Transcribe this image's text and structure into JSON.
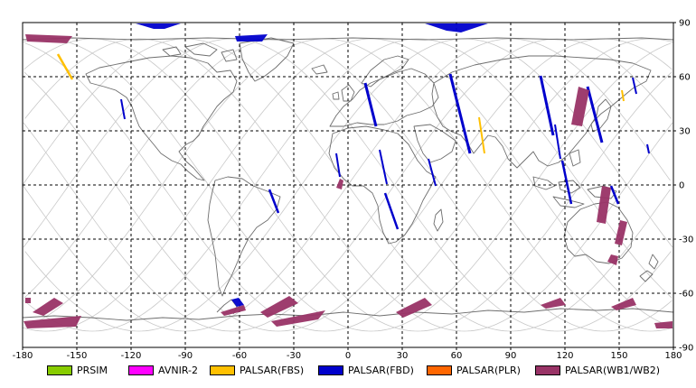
{
  "map": {
    "lon_ticks": [
      "-180",
      "-150",
      "-120",
      "-90",
      "-60",
      "-30",
      "0",
      "30",
      "60",
      "90",
      "120",
      "150",
      "180"
    ],
    "lat_ticks": [
      "90",
      "60",
      "30",
      "0",
      "-30",
      "-60",
      "-90"
    ],
    "lon_range": [
      -180,
      180
    ],
    "lat_range": [
      -90,
      90
    ],
    "grid": "dashed",
    "colors": {
      "coastline": "#6e6e6e",
      "orbit": "#c8c8c8",
      "grid": "#000000"
    }
  },
  "legend": {
    "placement": "bottom",
    "items": [
      {
        "label": "PRSIM",
        "color": "#88cc00"
      },
      {
        "label": "AVNIR-2",
        "color": "#ff00ff"
      },
      {
        "label": "PALSAR(FBS)",
        "color": "#ffc000"
      },
      {
        "label": "PALSAR(FBD)",
        "color": "#0000cc"
      },
      {
        "label": "PALSAR(PLR)",
        "color": "#ff6600"
      },
      {
        "label": "PALSAR(WB1/WB2)",
        "color": "#993366"
      }
    ]
  }
}
